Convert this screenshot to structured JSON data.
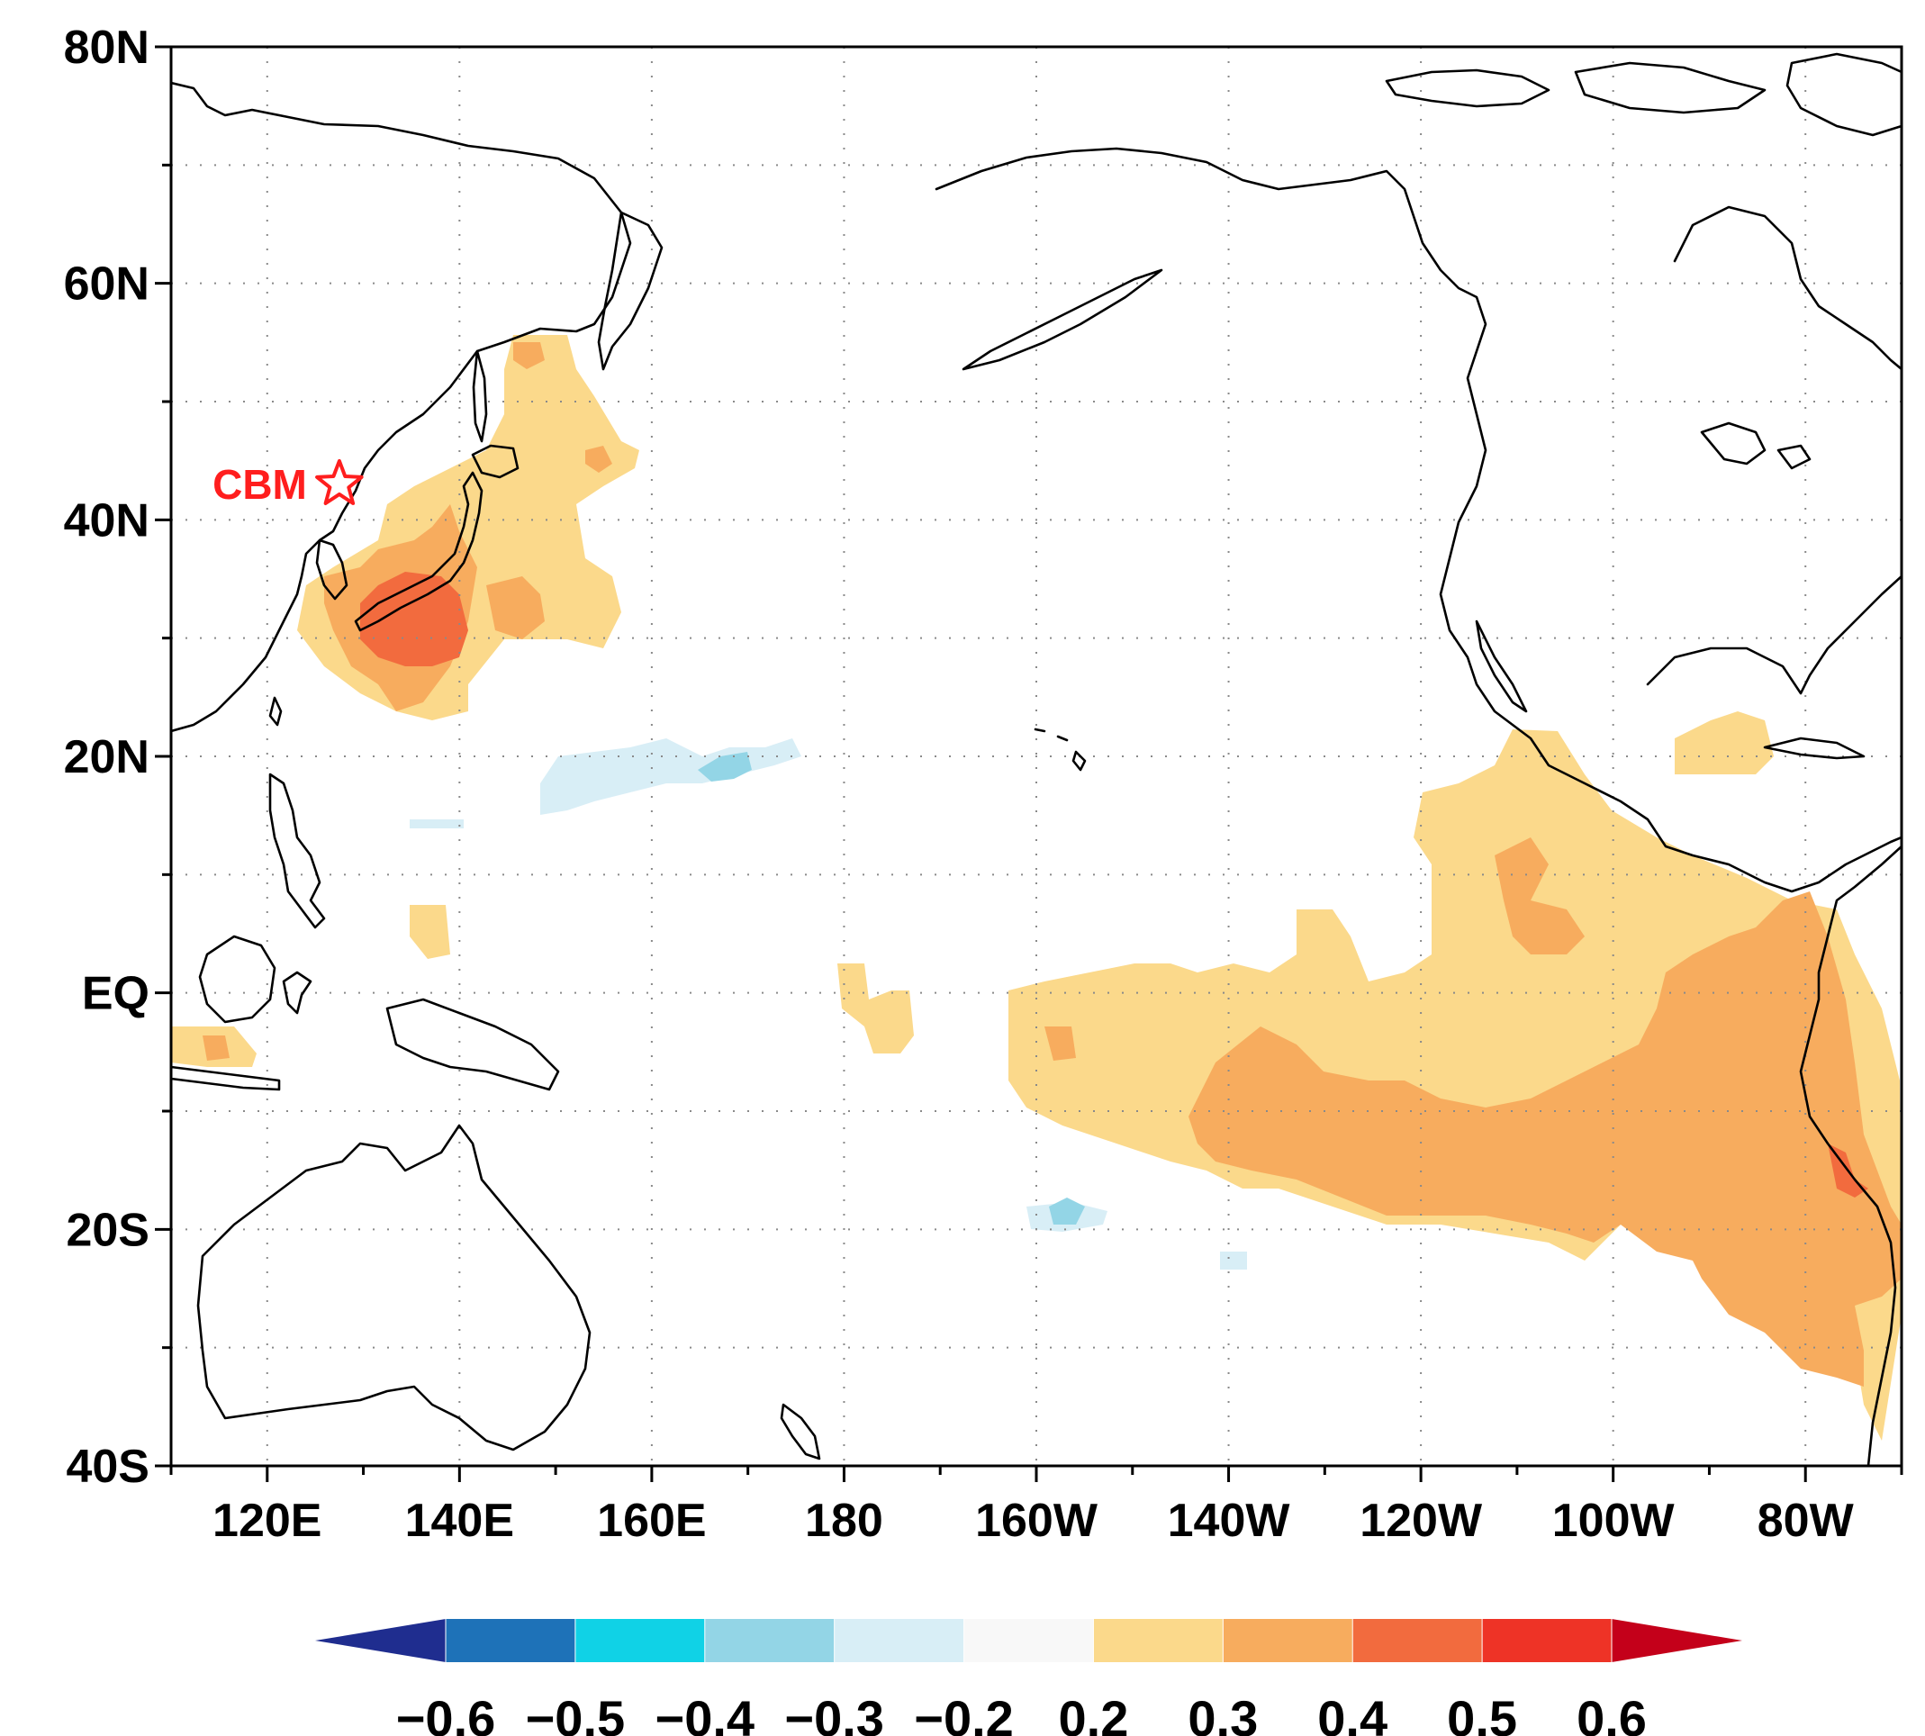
{
  "map": {
    "latitude_labels": [
      "80N",
      "60N",
      "40N",
      "20N",
      "EQ",
      "20S",
      "40S"
    ],
    "longitude_labels": [
      "120E",
      "140E",
      "160E",
      "180",
      "160W",
      "140W",
      "120W",
      "100W",
      "80W"
    ],
    "marker": {
      "label": "CBM",
      "symbol": "star",
      "lon": 127.5,
      "lat": 43.0,
      "color": "#ff1e1e"
    }
  },
  "colorbar": {
    "labels": [
      "−0.6",
      "−0.5",
      "−0.4",
      "−0.3",
      "−0.2",
      "0.2",
      "0.3",
      "0.4",
      "0.5",
      "0.6"
    ],
    "colors": [
      "#1f2d8f",
      "#1e72b8",
      "#10d2e6",
      "#93d5e6",
      "#d8eef6",
      "#f8f8f8",
      "#fbd98b",
      "#f7ac5e",
      "#f26b3e",
      "#ee3326",
      "#c4001a"
    ]
  },
  "fill_colors": {
    "weak_positive": "#fbd98b",
    "moderate_positive": "#f7ac5e",
    "strong_positive": "#f26b3e",
    "weak_negative": "#d8eef6",
    "moderate_negative": "#93d5e6"
  }
}
